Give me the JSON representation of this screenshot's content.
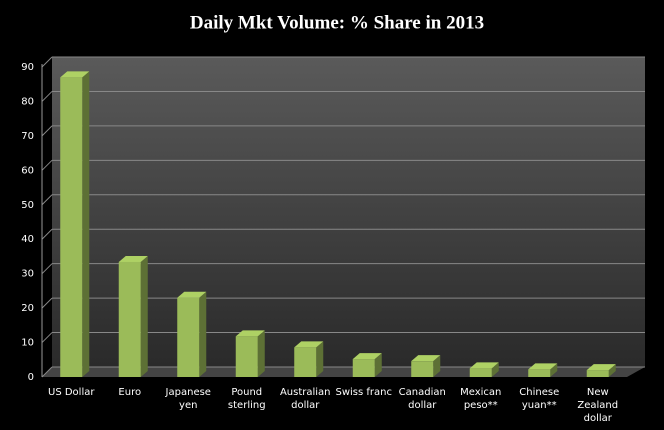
{
  "chart_data": {
    "type": "bar",
    "title": "Daily Mkt Volume: % Share in 2013",
    "categories": [
      "US Dollar",
      "Euro",
      "Japanese\nyen",
      "Pound\nsterling",
      "Australian\ndollar",
      "Swiss franc",
      "Canadian\ndollar",
      "Mexican\npeso**",
      "Chinese\nyuan**",
      "New\nZealand\ndollar"
    ],
    "values": [
      87,
      33.4,
      23,
      11.8,
      8.6,
      5.2,
      4.6,
      2.5,
      2.2,
      2.0
    ],
    "color": "#9bbb59",
    "ylim": [
      0,
      90
    ],
    "yticks": [
      0,
      10,
      20,
      30,
      40,
      50,
      60,
      70,
      80,
      90
    ],
    "grid": true
  }
}
